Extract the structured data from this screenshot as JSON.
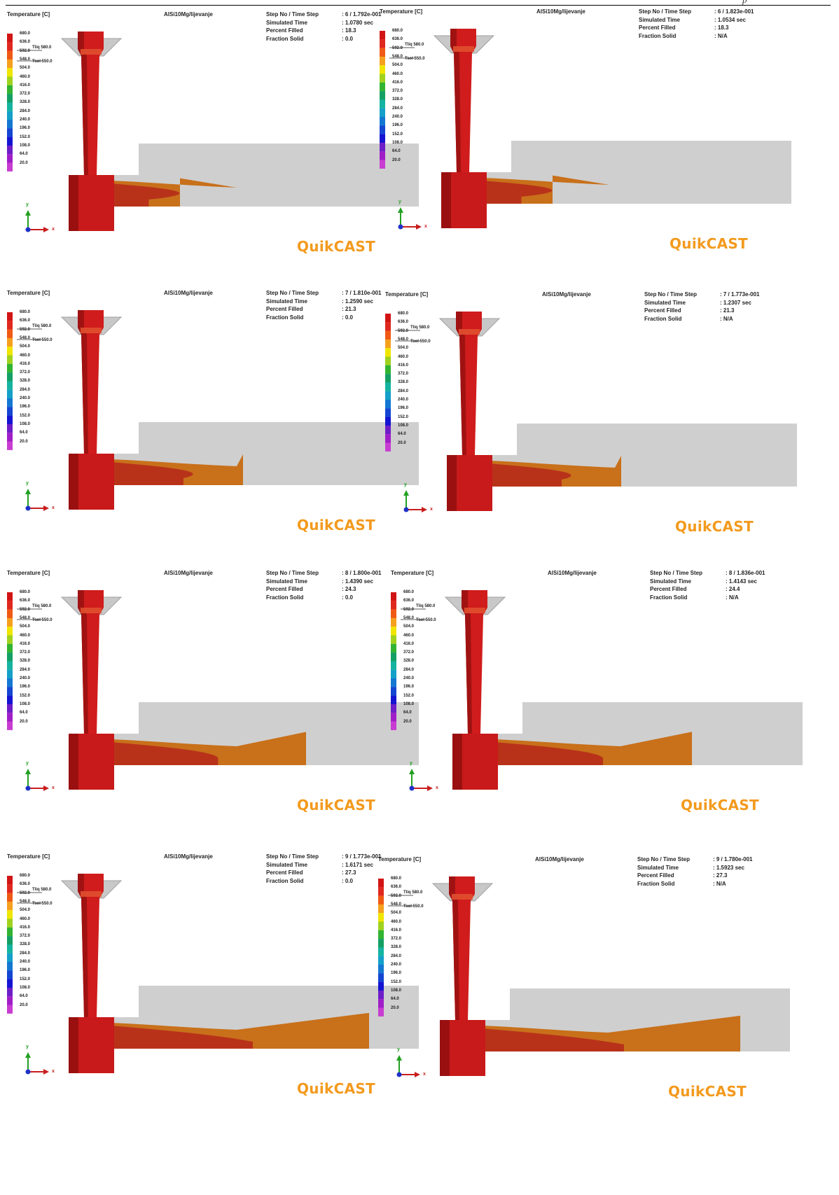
{
  "page": {
    "corner_text": "p"
  },
  "legend": {
    "title": "Temperature [C]",
    "ticks": [
      "680.0",
      "636.0",
      "592.0",
      "548.0",
      "504.0",
      "460.0",
      "416.0",
      "372.0",
      "328.0",
      "284.0",
      "240.0",
      "196.0",
      "152.0",
      "108.0",
      "64.0",
      "20.0"
    ],
    "tliq_label": "Tliq",
    "tliq_value": "580.0",
    "tsol_label": "Tsol",
    "tsol_value": "550.0",
    "colors": [
      "#d21414",
      "#e0281e",
      "#f05a14",
      "#f5a01e",
      "#f0e600",
      "#a0d21e",
      "#32b432",
      "#14a064",
      "#14b4a0",
      "#14a0c8",
      "#1478d2",
      "#1446d2",
      "#1414d2",
      "#6e1ec8",
      "#a01ec8",
      "#c83cd2"
    ]
  },
  "material": "AlSi10Mg/lijevanje",
  "info_keys": [
    "Step No / Time Step",
    "Simulated Time",
    "Percent Filled",
    "Fraction Solid"
  ],
  "brand": "QuikCAST",
  "axis": {
    "y": "y",
    "x": "x"
  },
  "panels": [
    {
      "step": ": 6 / 1.792e-001",
      "time": ": 1.0780 sec",
      "filled": ": 18.3",
      "solid": ": 0.0"
    },
    {
      "step": ": 6 / 1.823e-001",
      "time": ": 1.0534 sec",
      "filled": ": 18.3",
      "solid": ": N/A"
    },
    {
      "step": ": 7 / 1.810e-001",
      "time": ": 1.2590 sec",
      "filled": ": 21.3",
      "solid": ": 0.0"
    },
    {
      "step": ": 7 / 1.773e-001",
      "time": ": 1.2307 sec",
      "filled": ": 21.3",
      "solid": ": N/A"
    },
    {
      "step": ": 8 / 1.800e-001",
      "time": ": 1.4390 sec",
      "filled": ": 24.3",
      "solid": ": 0.0"
    },
    {
      "step": ": 8 / 1.836e-001",
      "time": ": 1.4143 sec",
      "filled": ": 24.4",
      "solid": ": N/A"
    },
    {
      "step": ": 9 / 1.773e-001",
      "time": ": 1.6171 sec",
      "filled": ": 27.3",
      "solid": ": 0.0"
    },
    {
      "step": ": 9 / 1.780e-001",
      "time": ": 1.5923 sec",
      "filled": ": 27.3",
      "solid": ": N/A"
    }
  ]
}
